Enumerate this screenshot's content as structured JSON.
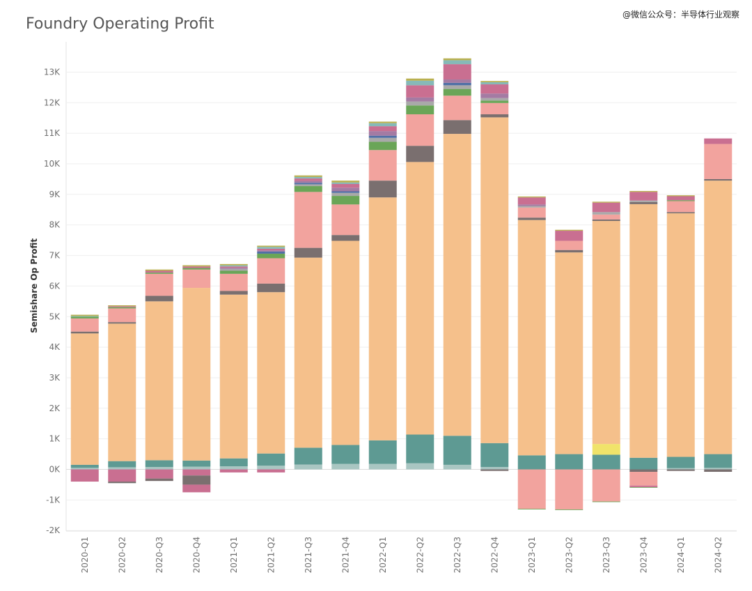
{
  "header": {
    "title": "Foundry Operating Profit",
    "watermark": "@微信公众号：半导体行业观察"
  },
  "chart_data": {
    "type": "bar",
    "stacked": true,
    "title": "Foundry Operating Profit",
    "xlabel": "",
    "ylabel": "Semishare Op Profit",
    "ylim": [
      -2200,
      13600
    ],
    "yticks": [
      -2000,
      -1000,
      0,
      1000,
      2000,
      3000,
      4000,
      5000,
      6000,
      7000,
      8000,
      9000,
      10000,
      11000,
      12000,
      13000
    ],
    "ytick_labels": [
      "-2K",
      "-1K",
      "0K",
      "1K",
      "2K",
      "3K",
      "4K",
      "5K",
      "6K",
      "7K",
      "8K",
      "9K",
      "10K",
      "11K",
      "12K",
      "13K"
    ],
    "grid": true,
    "categories": [
      "2020-Q1",
      "2020-Q2",
      "2020-Q3",
      "2020-Q4",
      "2021-Q1",
      "2021-Q2",
      "2021-Q3",
      "2021-Q4",
      "2022-Q1",
      "2022-Q2",
      "2022-Q3",
      "2022-Q4",
      "2023-Q1",
      "2023-Q2",
      "2023-Q3",
      "2023-Q4",
      "2024-Q1",
      "2024-Q2"
    ],
    "series": [
      {
        "color": "#a9c6c2",
        "values": [
          50,
          70,
          80,
          90,
          100,
          120,
          160,
          180,
          180,
          200,
          150,
          80,
          0,
          0,
          0,
          0,
          40,
          50
        ]
      },
      {
        "color": "#5e9a93",
        "values": [
          100,
          200,
          220,
          200,
          260,
          400,
          550,
          620,
          770,
          940,
          950,
          780,
          460,
          500,
          480,
          380,
          370,
          450
        ]
      },
      {
        "color": "#f0e36a",
        "values": [
          0,
          0,
          0,
          0,
          0,
          0,
          0,
          0,
          0,
          0,
          0,
          0,
          0,
          0,
          350,
          0,
          0,
          0
        ]
      },
      {
        "color": "#f5c08b",
        "values": [
          4300,
          4500,
          5200,
          5650,
          5360,
          5280,
          6220,
          6680,
          7950,
          8920,
          9880,
          10660,
          7700,
          6600,
          7300,
          8300,
          7970,
          8950
        ]
      },
      {
        "color": "#7a6f6f",
        "values": [
          60,
          50,
          180,
          0,
          120,
          280,
          320,
          190,
          550,
          530,
          450,
          100,
          80,
          80,
          50,
          70,
          40,
          50
        ]
      },
      {
        "color": "#f2a39e",
        "values": [
          430,
          450,
          720,
          600,
          560,
          830,
          1830,
          1000,
          1000,
          1030,
          800,
          370,
          330,
          300,
          160,
          0,
          360,
          1150
        ]
      },
      {
        "color": "#6aa557",
        "values": [
          60,
          40,
          40,
          50,
          100,
          150,
          190,
          280,
          270,
          290,
          220,
          80,
          0,
          0,
          0,
          0,
          30,
          0
        ]
      },
      {
        "color": "#a9a9a9",
        "values": [
          0,
          0,
          0,
          0,
          60,
          0,
          60,
          100,
          130,
          130,
          120,
          80,
          50,
          0,
          80,
          50,
          0,
          0
        ]
      },
      {
        "color": "#4f6fa6",
        "values": [
          0,
          0,
          0,
          0,
          0,
          70,
          50,
          50,
          70,
          0,
          80,
          0,
          0,
          0,
          0,
          0,
          0,
          0
        ]
      },
      {
        "color": "#a47ba3",
        "values": [
          0,
          0,
          0,
          0,
          40,
          40,
          60,
          120,
          150,
          130,
          110,
          150,
          50,
          0,
          0,
          0,
          0,
          0
        ]
      },
      {
        "color": "#c96f91",
        "values": [
          0,
          30,
          60,
          50,
          40,
          50,
          80,
          120,
          160,
          400,
          500,
          300,
          230,
          330,
          310,
          280,
          130,
          180
        ]
      },
      {
        "color": "#86b9b8",
        "values": [
          20,
          0,
          0,
          0,
          40,
          60,
          50,
          50,
          100,
          150,
          130,
          70,
          0,
          0,
          0,
          0,
          0,
          0
        ]
      },
      {
        "color": "#b9b050",
        "values": [
          40,
          30,
          40,
          40,
          40,
          40,
          50,
          60,
          50,
          70,
          60,
          40,
          30,
          30,
          30,
          30,
          30,
          0
        ]
      },
      {
        "color": "#c96f91",
        "values": [
          -400,
          -400,
          -300,
          -200,
          -100,
          -100,
          0,
          0,
          0,
          0,
          0,
          0,
          0,
          0,
          0,
          0,
          0,
          0
        ]
      },
      {
        "color": "#7a6f6f",
        "values": [
          0,
          -50,
          -80,
          -300,
          0,
          0,
          0,
          0,
          0,
          0,
          0,
          -50,
          0,
          0,
          0,
          -80,
          -50,
          -80
        ]
      },
      {
        "color": "#f2a39e",
        "values": [
          0,
          0,
          0,
          0,
          0,
          0,
          0,
          0,
          0,
          0,
          0,
          0,
          -1290,
          -1310,
          -1050,
          -450,
          0,
          0
        ]
      },
      {
        "color": "#c96f91",
        "values": [
          0,
          0,
          0,
          -250,
          0,
          0,
          0,
          0,
          0,
          0,
          0,
          0,
          0,
          0,
          0,
          -50,
          0,
          0
        ]
      },
      {
        "color": "#6aa557",
        "values": [
          0,
          0,
          0,
          0,
          0,
          0,
          0,
          0,
          0,
          0,
          0,
          0,
          -20,
          -20,
          -20,
          -20,
          0,
          0
        ]
      }
    ]
  }
}
